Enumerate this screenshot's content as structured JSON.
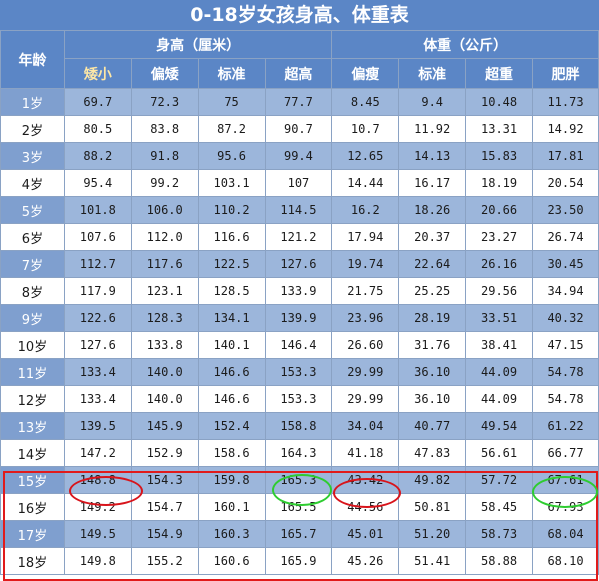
{
  "title": "0-18岁女孩身高、体重表",
  "headers": {
    "age": "年龄",
    "height_group": "身高（厘米）",
    "weight_group": "体重（公斤）",
    "height_cols": [
      "矮小",
      "偏矮",
      "标准",
      "超高"
    ],
    "weight_cols": [
      "偏瘦",
      "标准",
      "超重",
      "肥胖"
    ]
  },
  "rows": [
    {
      "age": "1岁",
      "h": [
        "69.7",
        "72.3",
        "75",
        "77.7"
      ],
      "w": [
        "8.45",
        "9.4",
        "10.48",
        "11.73"
      ]
    },
    {
      "age": "2岁",
      "h": [
        "80.5",
        "83.8",
        "87.2",
        "90.7"
      ],
      "w": [
        "10.7",
        "11.92",
        "13.31",
        "14.92"
      ]
    },
    {
      "age": "3岁",
      "h": [
        "88.2",
        "91.8",
        "95.6",
        "99.4"
      ],
      "w": [
        "12.65",
        "14.13",
        "15.83",
        "17.81"
      ]
    },
    {
      "age": "4岁",
      "h": [
        "95.4",
        "99.2",
        "103.1",
        "107"
      ],
      "w": [
        "14.44",
        "16.17",
        "18.19",
        "20.54"
      ]
    },
    {
      "age": "5岁",
      "h": [
        "101.8",
        "106.0",
        "110.2",
        "114.5"
      ],
      "w": [
        "16.2",
        "18.26",
        "20.66",
        "23.50"
      ]
    },
    {
      "age": "6岁",
      "h": [
        "107.6",
        "112.0",
        "116.6",
        "121.2"
      ],
      "w": [
        "17.94",
        "20.37",
        "23.27",
        "26.74"
      ]
    },
    {
      "age": "7岁",
      "h": [
        "112.7",
        "117.6",
        "122.5",
        "127.6"
      ],
      "w": [
        "19.74",
        "22.64",
        "26.16",
        "30.45"
      ]
    },
    {
      "age": "8岁",
      "h": [
        "117.9",
        "123.1",
        "128.5",
        "133.9"
      ],
      "w": [
        "21.75",
        "25.25",
        "29.56",
        "34.94"
      ]
    },
    {
      "age": "9岁",
      "h": [
        "122.6",
        "128.3",
        "134.1",
        "139.9"
      ],
      "w": [
        "23.96",
        "28.19",
        "33.51",
        "40.32"
      ]
    },
    {
      "age": "10岁",
      "h": [
        "127.6",
        "133.8",
        "140.1",
        "146.4"
      ],
      "w": [
        "26.60",
        "31.76",
        "38.41",
        "47.15"
      ]
    },
    {
      "age": "11岁",
      "h": [
        "133.4",
        "140.0",
        "146.6",
        "153.3"
      ],
      "w": [
        "29.99",
        "36.10",
        "44.09",
        "54.78"
      ]
    },
    {
      "age": "12岁",
      "h": [
        "133.4",
        "140.0",
        "146.6",
        "153.3"
      ],
      "w": [
        "29.99",
        "36.10",
        "44.09",
        "54.78"
      ]
    },
    {
      "age": "13岁",
      "h": [
        "139.5",
        "145.9",
        "152.4",
        "158.8"
      ],
      "w": [
        "34.04",
        "40.77",
        "49.54",
        "61.22"
      ]
    },
    {
      "age": "14岁",
      "h": [
        "147.2",
        "152.9",
        "158.6",
        "164.3"
      ],
      "w": [
        "41.18",
        "47.83",
        "56.61",
        "66.77"
      ]
    },
    {
      "age": "15岁",
      "h": [
        "148.8",
        "154.3",
        "159.8",
        "165.3"
      ],
      "w": [
        "43.42",
        "49.82",
        "57.72",
        "67.61"
      ]
    },
    {
      "age": "16岁",
      "h": [
        "149.2",
        "154.7",
        "160.1",
        "165.5"
      ],
      "w": [
        "44.56",
        "50.81",
        "58.45",
        "67.93"
      ]
    },
    {
      "age": "17岁",
      "h": [
        "149.5",
        "154.9",
        "160.3",
        "165.7"
      ],
      "w": [
        "45.01",
        "51.20",
        "58.73",
        "68.04"
      ]
    },
    {
      "age": "18岁",
      "h": [
        "149.8",
        "155.2",
        "160.6",
        "165.9"
      ],
      "w": [
        "45.26",
        "51.41",
        "58.88",
        "68.10"
      ]
    }
  ],
  "annotations": {
    "box_color": "#e11b1b",
    "red_circle": "#d8141b",
    "green_circle": "#2ecc30"
  }
}
